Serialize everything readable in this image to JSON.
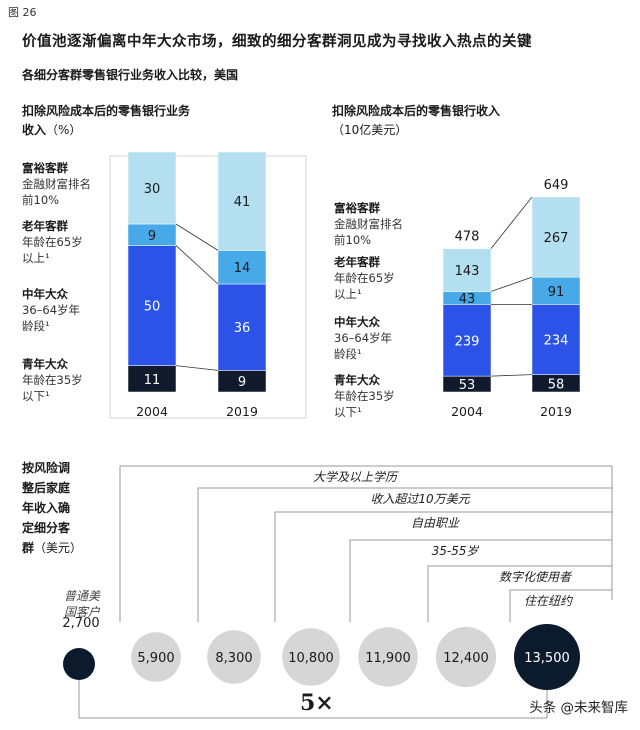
{
  "figure_label": "图 26",
  "title": "价值池逐渐偏离中年大众市场，细致的细分客群洞见成为寻找收入热点的关键",
  "subtitle": "各细分客群零售银行业务收入比较，美国",
  "segments": [
    {
      "name": "富裕客群",
      "desc_line1": "金融财富排名",
      "desc_line2": "前10%"
    },
    {
      "name": "老年客群",
      "desc_line1": "年龄在65岁",
      "desc_line2": "以上¹"
    },
    {
      "name": "中年大众",
      "desc_line1": "36–64岁年",
      "desc_line2": "龄段¹"
    },
    {
      "name": "青年大众",
      "desc_line1": "年龄在35岁",
      "desc_line2": "以下¹"
    }
  ],
  "colors": {
    "affluent": "#b3dff0",
    "senior": "#47a9e8",
    "midlife": "#2b53e8",
    "youth": "#111a2c",
    "grey_circle": "#d6d6d6",
    "dark_circle": "#0c1a2e"
  },
  "chart_data": [
    {
      "type": "bar",
      "stacked": true,
      "title_line1": "扣除风险成本后的零售银行业务",
      "title_line2": "收入",
      "unit": "（%）",
      "categories": [
        "2004",
        "2019"
      ],
      "series": [
        {
          "name": "青年大众",
          "values": [
            11,
            9
          ]
        },
        {
          "name": "中年大众",
          "values": [
            50,
            36
          ]
        },
        {
          "name": "老年客群",
          "values": [
            9,
            14
          ]
        },
        {
          "name": "富裕客群",
          "values": [
            30,
            41
          ]
        }
      ],
      "ylim": [
        0,
        100
      ]
    },
    {
      "type": "bar",
      "stacked": true,
      "title_line1": "扣除风险成本后的零售银行收入",
      "unit": "（10亿美元）",
      "categories": [
        "2004",
        "2019"
      ],
      "series": [
        {
          "name": "青年大众",
          "values": [
            53,
            58
          ]
        },
        {
          "name": "中年大众",
          "values": [
            239,
            234
          ]
        },
        {
          "name": "老年客群",
          "values": [
            43,
            91
          ]
        },
        {
          "name": "富裕客群",
          "values": [
            143,
            267
          ]
        }
      ],
      "totals": [
        478,
        649
      ]
    },
    {
      "type": "scatter",
      "title_line1": "按风险调",
      "title_line2": "整后家庭",
      "title_line3": "年收入确",
      "title_line4": "定细分客",
      "title_line5": "群",
      "unit": "（美元）",
      "categories": [
        "普通美国客户",
        "大学及以上学历",
        "收入超过10万美元",
        "自由职业",
        "35-55岁",
        "数字化使用者",
        "住在纽约"
      ],
      "values": [
        2700,
        5900,
        8300,
        10800,
        11900,
        12400,
        13500
      ],
      "base_label_line1": "普通美",
      "base_label_line2": "国客户",
      "base_value": "2,700",
      "circle_labels": [
        "5,900",
        "8,300",
        "10,800",
        "11,900",
        "12,400",
        "13,500"
      ],
      "stair_labels": [
        "大学及以上学历",
        "收入超过10万美元",
        "自由职业",
        "35-55岁",
        "数字化使用者",
        "住在纽约"
      ],
      "multiplier": "5×"
    }
  ],
  "watermark": "头条 @未来智库"
}
